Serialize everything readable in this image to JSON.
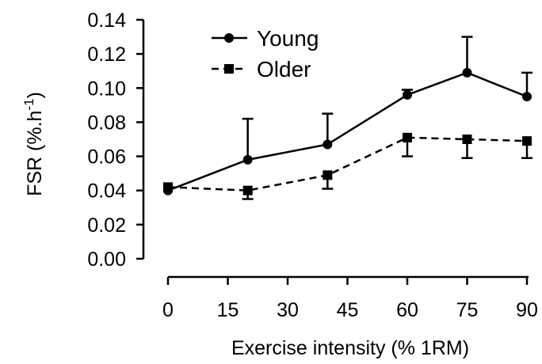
{
  "chart_data": {
    "type": "line",
    "xlabel": "Exercise intensity (% 1RM)",
    "ylabel": "FSR (%.h",
    "ylabel_sup": "-1",
    "ylabel_close": ")",
    "xlim": [
      0,
      90
    ],
    "ylim": [
      0,
      0.14
    ],
    "x_ticks": [
      "0",
      "15",
      "30",
      "45",
      "60",
      "75",
      "90"
    ],
    "y_ticks": [
      "0.00",
      "0.02",
      "0.04",
      "0.06",
      "0.08",
      "0.10",
      "0.12",
      "0.14"
    ],
    "grid": false,
    "legend_position": "top-left",
    "series": [
      {
        "name": "Young",
        "marker": "circle",
        "line": "solid",
        "x": [
          0,
          20,
          40,
          60,
          75,
          90
        ],
        "values": [
          0.04,
          0.058,
          0.067,
          0.096,
          0.109,
          0.095
        ],
        "error_up": [
          0.0,
          0.024,
          0.018,
          0.003,
          0.021,
          0.014
        ],
        "error_down": [
          0.0,
          0.0,
          0.0,
          0.0,
          0.0,
          0.0
        ]
      },
      {
        "name": "Older",
        "marker": "square",
        "line": "dashed",
        "x": [
          0,
          20,
          40,
          60,
          75,
          90
        ],
        "values": [
          0.042,
          0.04,
          0.049,
          0.071,
          0.07,
          0.069
        ],
        "error_up": [
          0.0,
          0.0,
          0.0,
          0.0,
          0.0,
          0.0
        ],
        "error_down": [
          0.0,
          0.005,
          0.008,
          0.011,
          0.011,
          0.01
        ]
      }
    ]
  }
}
